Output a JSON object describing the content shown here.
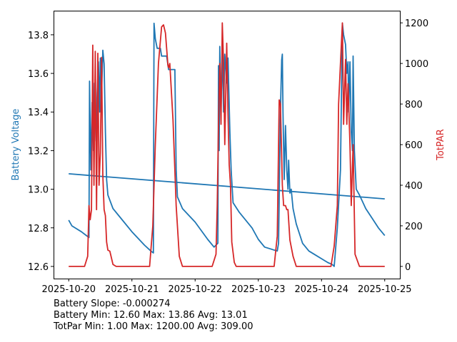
{
  "chart_data": {
    "type": "line",
    "xlabel": "",
    "ylabel": "Battery Voltage",
    "ylabel_right": "TotPAR",
    "x_ticks": [
      "2025-10-20",
      "2025-10-21",
      "2025-10-22",
      "2025-10-23",
      "2025-10-24",
      "2025-10-25"
    ],
    "y_ticks": [
      "12.6",
      "12.8",
      "13.0",
      "13.2",
      "13.4",
      "13.6",
      "13.8"
    ],
    "y2_ticks": [
      "0",
      "200",
      "400",
      "600",
      "800",
      "1000",
      "1200"
    ],
    "xlim_days": [
      -0.24,
      5.24
    ],
    "ylim": [
      12.537,
      13.925
    ],
    "y2lim": [
      -60,
      1260
    ],
    "colors": {
      "battery": "#1f77b4",
      "par": "#d62728"
    },
    "series": [
      {
        "name": "Battery Voltage",
        "axis": "left",
        "color": "#1f77b4",
        "points_day_value": [
          [
            0,
            12.84
          ],
          [
            0.05,
            12.81
          ],
          [
            0.1,
            12.8
          ],
          [
            0.2,
            12.78
          ],
          [
            0.28,
            12.76
          ],
          [
            0.32,
            12.75
          ],
          [
            0.33,
            13.56
          ],
          [
            0.35,
            13.1
          ],
          [
            0.37,
            13.45
          ],
          [
            0.39,
            13.2
          ],
          [
            0.41,
            13.55
          ],
          [
            0.43,
            13.25
          ],
          [
            0.45,
            13.5
          ],
          [
            0.47,
            13.66
          ],
          [
            0.49,
            13.4
          ],
          [
            0.5,
            13.68
          ],
          [
            0.52,
            13.5
          ],
          [
            0.54,
            13.72
          ],
          [
            0.56,
            13.65
          ],
          [
            0.58,
            13.3
          ],
          [
            0.6,
            13.05
          ],
          [
            0.62,
            12.97
          ],
          [
            0.7,
            12.9
          ],
          [
            0.8,
            12.86
          ],
          [
            1.0,
            12.78
          ],
          [
            1.2,
            12.71
          ],
          [
            1.3,
            12.68
          ],
          [
            1.34,
            12.67
          ],
          [
            1.35,
            13.86
          ],
          [
            1.37,
            13.78
          ],
          [
            1.4,
            13.73
          ],
          [
            1.45,
            13.73
          ],
          [
            1.47,
            13.69
          ],
          [
            1.55,
            13.69
          ],
          [
            1.58,
            13.62
          ],
          [
            1.68,
            13.62
          ],
          [
            1.7,
            13.1
          ],
          [
            1.72,
            12.96
          ],
          [
            1.8,
            12.9
          ],
          [
            2.0,
            12.83
          ],
          [
            2.2,
            12.74
          ],
          [
            2.3,
            12.7
          ],
          [
            2.36,
            12.72
          ],
          [
            2.37,
            13.64
          ],
          [
            2.38,
            13.2
          ],
          [
            2.39,
            13.74
          ],
          [
            2.41,
            13.4
          ],
          [
            2.43,
            13.72
          ],
          [
            2.45,
            13.4
          ],
          [
            2.47,
            13.7
          ],
          [
            2.5,
            13.55
          ],
          [
            2.52,
            13.68
          ],
          [
            2.55,
            13.3
          ],
          [
            2.57,
            13.1
          ],
          [
            2.6,
            12.93
          ],
          [
            2.7,
            12.88
          ],
          [
            2.9,
            12.8
          ],
          [
            3.0,
            12.74
          ],
          [
            3.1,
            12.7
          ],
          [
            3.3,
            12.68
          ],
          [
            3.32,
            12.72
          ],
          [
            3.35,
            13.4
          ],
          [
            3.37,
            13.67
          ],
          [
            3.38,
            13.7
          ],
          [
            3.39,
            13.4
          ],
          [
            3.41,
            13.05
          ],
          [
            3.43,
            13.33
          ],
          [
            3.45,
            13.1
          ],
          [
            3.47,
            13.0
          ],
          [
            3.48,
            13.15
          ],
          [
            3.5,
            12.98
          ],
          [
            3.52,
            13.0
          ],
          [
            3.55,
            12.9
          ],
          [
            3.6,
            12.82
          ],
          [
            3.7,
            12.72
          ],
          [
            3.8,
            12.68
          ],
          [
            3.9,
            12.66
          ],
          [
            4.0,
            12.64
          ],
          [
            4.1,
            12.62
          ],
          [
            4.17,
            12.61
          ],
          [
            4.2,
            12.6
          ],
          [
            4.25,
            12.8
          ],
          [
            4.3,
            13.1
          ],
          [
            4.33,
            13.86
          ],
          [
            4.35,
            13.8
          ],
          [
            4.38,
            13.75
          ],
          [
            4.4,
            13.6
          ],
          [
            4.42,
            13.66
          ],
          [
            4.43,
            13.4
          ],
          [
            4.45,
            13.66
          ],
          [
            4.47,
            13.3
          ],
          [
            4.49,
            13.2
          ],
          [
            4.5,
            13.69
          ],
          [
            4.52,
            13.2
          ],
          [
            4.55,
            13.0
          ],
          [
            4.6,
            12.97
          ],
          [
            4.7,
            12.9
          ],
          [
            4.8,
            12.85
          ],
          [
            4.9,
            12.8
          ],
          [
            5.0,
            12.76
          ]
        ]
      },
      {
        "name": "Battery Trend",
        "axis": "left",
        "color": "#1f77b4",
        "points_day_value": [
          [
            0,
            13.08
          ],
          [
            5.0,
            12.95
          ]
        ]
      },
      {
        "name": "TotPAR",
        "axis": "right",
        "color": "#d62728",
        "points_day_value": [
          [
            0,
            0
          ],
          [
            0.25,
            0
          ],
          [
            0.3,
            50
          ],
          [
            0.32,
            300
          ],
          [
            0.34,
            230
          ],
          [
            0.36,
            280
          ],
          [
            0.38,
            1090
          ],
          [
            0.4,
            400
          ],
          [
            0.42,
            1060
          ],
          [
            0.44,
            280
          ],
          [
            0.46,
            1050
          ],
          [
            0.48,
            400
          ],
          [
            0.5,
            560
          ],
          [
            0.52,
            1030
          ],
          [
            0.54,
            450
          ],
          [
            0.56,
            280
          ],
          [
            0.58,
            250
          ],
          [
            0.6,
            120
          ],
          [
            0.62,
            80
          ],
          [
            0.65,
            75
          ],
          [
            0.7,
            10
          ],
          [
            0.75,
            0
          ],
          [
            1.28,
            0
          ],
          [
            1.33,
            200
          ],
          [
            1.37,
            600
          ],
          [
            1.42,
            1000
          ],
          [
            1.47,
            1180
          ],
          [
            1.5,
            1190
          ],
          [
            1.53,
            1150
          ],
          [
            1.57,
            990
          ],
          [
            1.58,
            980
          ],
          [
            1.6,
            1000
          ],
          [
            1.65,
            720
          ],
          [
            1.7,
            300
          ],
          [
            1.75,
            50
          ],
          [
            1.8,
            0
          ],
          [
            2.27,
            0
          ],
          [
            2.33,
            60
          ],
          [
            2.35,
            300
          ],
          [
            2.37,
            700
          ],
          [
            2.39,
            1000
          ],
          [
            2.41,
            700
          ],
          [
            2.43,
            1200
          ],
          [
            2.45,
            1000
          ],
          [
            2.47,
            600
          ],
          [
            2.5,
            1100
          ],
          [
            2.52,
            750
          ],
          [
            2.54,
            500
          ],
          [
            2.56,
            400
          ],
          [
            2.58,
            120
          ],
          [
            2.62,
            20
          ],
          [
            2.65,
            0
          ],
          [
            3.25,
            0
          ],
          [
            3.3,
            150
          ],
          [
            3.33,
            820
          ],
          [
            3.35,
            800
          ],
          [
            3.38,
            400
          ],
          [
            3.4,
            300
          ],
          [
            3.43,
            300
          ],
          [
            3.45,
            280
          ],
          [
            3.47,
            280
          ],
          [
            3.5,
            130
          ],
          [
            3.55,
            50
          ],
          [
            3.6,
            0
          ],
          [
            4.15,
            0
          ],
          [
            4.2,
            100
          ],
          [
            4.25,
            300
          ],
          [
            4.27,
            800
          ],
          [
            4.3,
            1000
          ],
          [
            4.33,
            1200
          ],
          [
            4.35,
            700
          ],
          [
            4.38,
            1020
          ],
          [
            4.4,
            700
          ],
          [
            4.42,
            900
          ],
          [
            4.45,
            600
          ],
          [
            4.47,
            300
          ],
          [
            4.5,
            600
          ],
          [
            4.53,
            60
          ],
          [
            4.6,
            0
          ],
          [
            5.0,
            0
          ]
        ]
      }
    ],
    "annotations": [
      "Battery Slope: -0.000274",
      "Battery Min: 12.60 Max: 13.86 Avg: 13.01",
      "TotPar Min: 1.00 Max: 1200.00 Avg: 309.00"
    ]
  }
}
